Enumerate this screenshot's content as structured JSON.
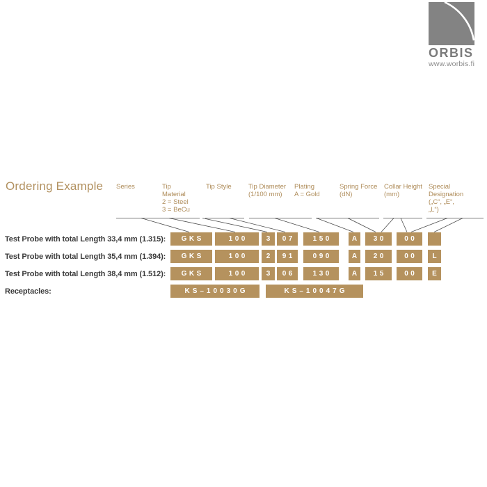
{
  "page": {
    "heading": "Ordering Example"
  },
  "logo": {
    "name": "ORBIS",
    "url": "www.worbis.fi",
    "mark": "quarter-arc-square"
  },
  "colors": {
    "box_gold": "#b5925e",
    "header_gold": "#ae8b58",
    "heading_gold": "#b29160",
    "label_dark": "#3a3a3a",
    "logo_gray": "#838383",
    "leader_line": "#4d4d4d"
  },
  "table": {
    "headers": [
      {
        "lines": [
          "Series"
        ]
      },
      {
        "lines": [
          "Tip",
          "Material",
          "2 = Steel",
          "3 = BeCu"
        ]
      },
      {
        "lines": [
          "Tip Style"
        ]
      },
      {
        "lines": [
          "Tip Diameter",
          "(1/100 mm)"
        ]
      },
      {
        "lines": [
          "Plating",
          "A = Gold"
        ]
      },
      {
        "lines": [
          "Spring Force",
          "(dN)"
        ]
      },
      {
        "lines": [
          "Collar Height",
          "(mm)"
        ]
      },
      {
        "lines": [
          "Special",
          "Designation",
          "(„C“, „E“,",
          "„L“)"
        ]
      }
    ],
    "rows": [
      {
        "label": "Test Probe with total Length 33,4 mm (1.315):",
        "cells": [
          "GKS",
          "100",
          "3",
          "07",
          "150",
          "A",
          "30",
          "00",
          ""
        ]
      },
      {
        "label": "Test Probe with total Length 35,4 mm (1.394):",
        "cells": [
          "GKS",
          "100",
          "2",
          "91",
          "090",
          "A",
          "20",
          "00",
          "L"
        ]
      },
      {
        "label": "Test Probe with total Length 38,4 mm (1.512):",
        "cells": [
          "GKS",
          "100",
          "3",
          "06",
          "130",
          "A",
          "15",
          "00",
          "E"
        ]
      }
    ],
    "receptacles": {
      "label": "Receptacles:",
      "codes": [
        "KS–10030G",
        "KS–10047G"
      ]
    }
  }
}
